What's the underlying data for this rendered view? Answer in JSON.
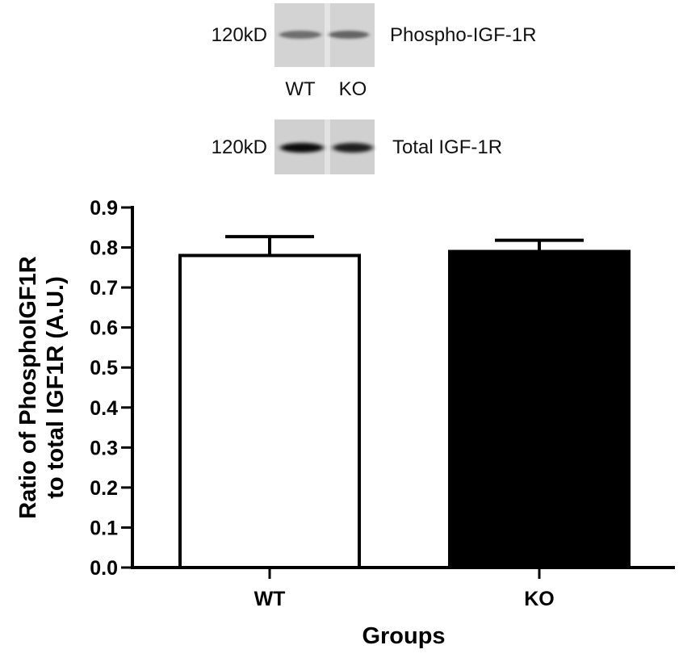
{
  "blots": {
    "phospho": {
      "size_marker": "120kD",
      "label": "Phospho-IGF-1R",
      "band_intensity": [
        0.55,
        0.6
      ]
    },
    "lane_labels": [
      "WT",
      "KO"
    ],
    "total": {
      "size_marker": "120kD",
      "label": "Total IGF-1R",
      "band_intensity": [
        0.95,
        0.85
      ]
    }
  },
  "chart_data": {
    "type": "bar",
    "categories": [
      "WT",
      "KO"
    ],
    "series": [
      {
        "values": [
          0.78,
          0.79
        ],
        "errors": [
          0.047,
          0.028
        ],
        "fill_colors": [
          "#ffffff",
          "#000000"
        ]
      }
    ],
    "ylabel_lines": [
      "Ratio of PhosphoIGF1R",
      "to total IGF1R (A.U.)"
    ],
    "xlabel": "Groups",
    "ylim": [
      0,
      0.9
    ],
    "yticks": [
      "0.0",
      "0.1",
      "0.2",
      "0.3",
      "0.4",
      "0.5",
      "0.6",
      "0.7",
      "0.8",
      "0.9"
    ],
    "grid": false,
    "legend": "none"
  }
}
